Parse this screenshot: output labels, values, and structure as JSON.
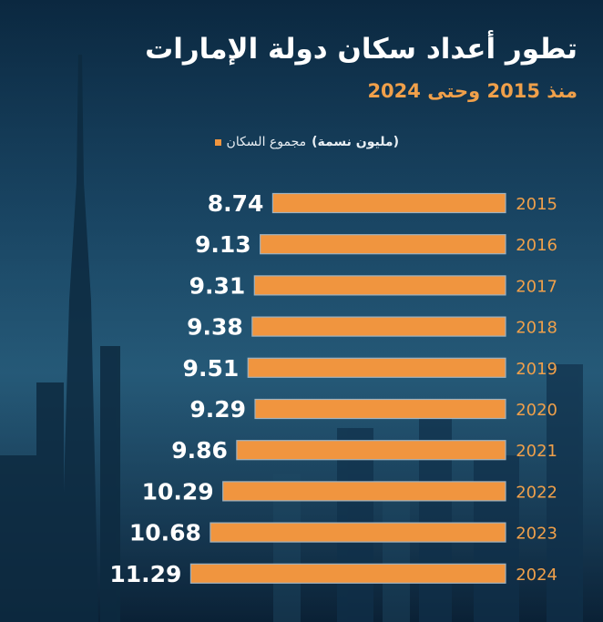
{
  "title": "تطور أعداد سكان دولة الإمارات",
  "subtitle": "منذ 2015 وحتى 2024",
  "legend": {
    "label": "مجموع السكان",
    "unit": "(مليون نسمة)"
  },
  "colors": {
    "bar": "#f0953f",
    "year_text": "#f0a04a",
    "value_text": "#ffffff",
    "track": "#9fb2bf"
  },
  "chart_data": {
    "type": "bar",
    "orientation": "horizontal",
    "categories": [
      "2015",
      "2016",
      "2017",
      "2018",
      "2019",
      "2020",
      "2021",
      "2022",
      "2023",
      "2024"
    ],
    "series": [
      {
        "name": "مجموع السكان",
        "values": [
          8.74,
          9.13,
          9.31,
          9.38,
          9.51,
          9.29,
          9.86,
          10.29,
          10.68,
          11.29
        ]
      }
    ],
    "title": "تطور أعداد سكان دولة الإمارات",
    "subtitle": "منذ 2015 وحتى 2024",
    "ylabel": "",
    "xlabel": "",
    "xlim": [
      0,
      11.29
    ],
    "grid": false,
    "legend_position": "top-right",
    "data_labels": true
  }
}
